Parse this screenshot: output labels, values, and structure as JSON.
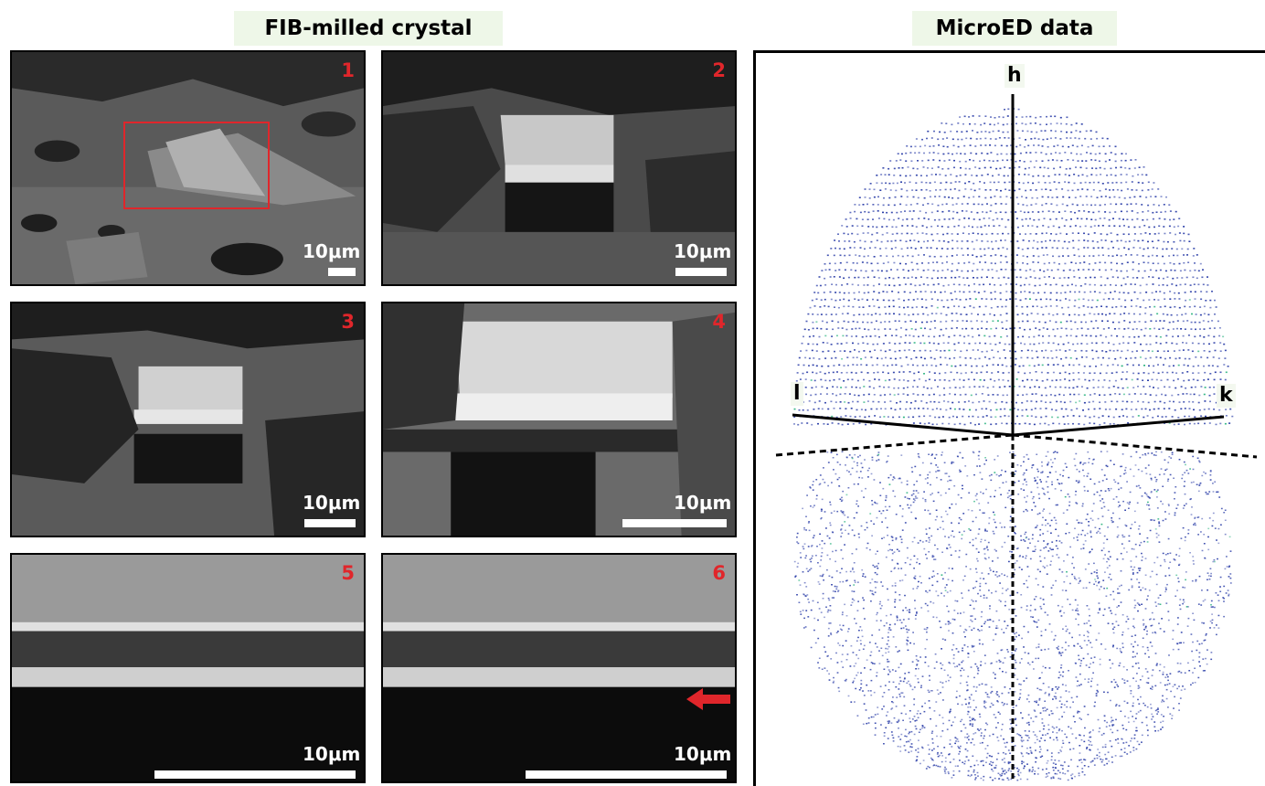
{
  "left_title": "FIB-milled crystal",
  "right_title": "MicroED data",
  "panels": [
    {
      "number": "1",
      "scale_label": "10μm"
    },
    {
      "number": "2",
      "scale_label": "10μm"
    },
    {
      "number": "3",
      "scale_label": "10μm"
    },
    {
      "number": "4",
      "scale_label": "10μm"
    },
    {
      "number": "5",
      "scale_label": "10μm"
    },
    {
      "number": "6",
      "scale_label": "10μm"
    }
  ],
  "microed": {
    "axis_h": "h",
    "axis_l": "l",
    "axis_k": "k"
  },
  "colors": {
    "panel_label": "#e0262b",
    "title_bg": "#eef7e8",
    "reflection_main": "#2b3ea8",
    "reflection_strong": "#22b07a"
  }
}
